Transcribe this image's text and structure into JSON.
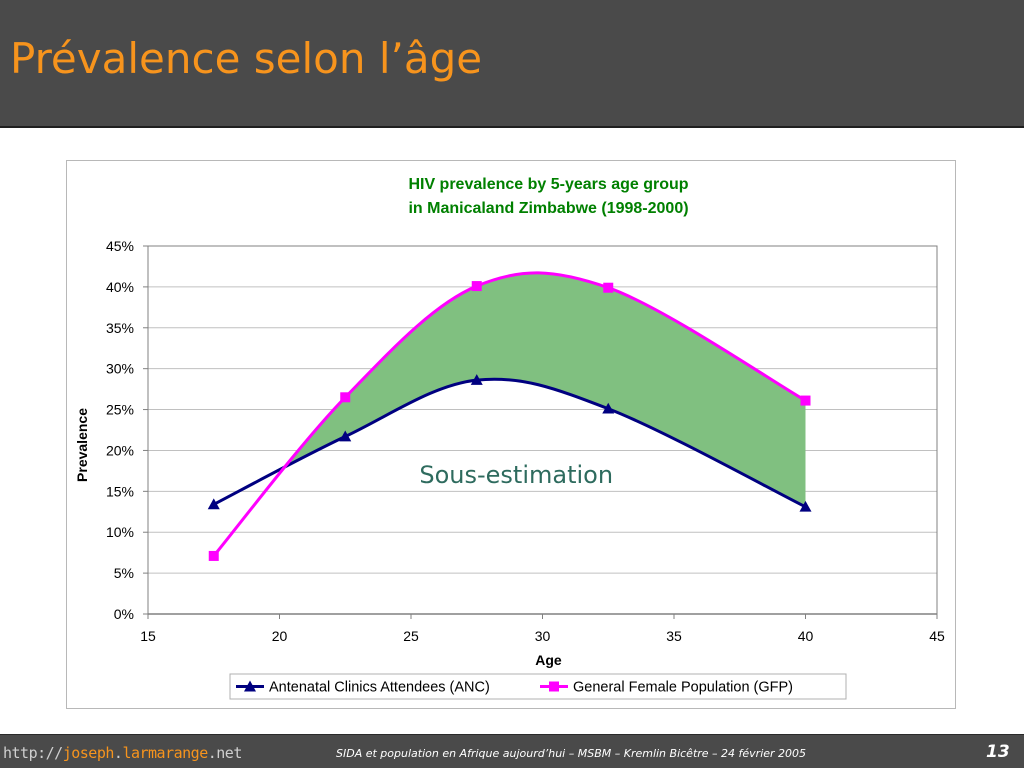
{
  "slide": {
    "title": "Prévalence selon l’âge"
  },
  "chart_data": {
    "type": "line",
    "title_lines": [
      "HIV prevalence by 5-years age group",
      "in Manicaland Zimbabwe (1998-2000)"
    ],
    "xlabel": "Age",
    "ylabel": "Prevalence",
    "xlim": [
      15,
      45
    ],
    "ylim": [
      0,
      0.45
    ],
    "x_ticks": [
      15,
      20,
      25,
      30,
      35,
      40,
      45
    ],
    "x_tick_labels": [
      "15",
      "20",
      "25",
      "30",
      "35",
      "40",
      "45"
    ],
    "y_ticks": [
      0,
      0.05,
      0.1,
      0.15,
      0.2,
      0.25,
      0.3,
      0.35,
      0.4,
      0.45
    ],
    "y_tick_labels": [
      "0%",
      "5%",
      "10%",
      "15%",
      "20%",
      "25%",
      "30%",
      "35%",
      "40%",
      "45%"
    ],
    "grid": true,
    "legend_position": "bottom",
    "series": [
      {
        "name": "Antenatal Clinics Attendees (ANC)",
        "color": "#000080",
        "marker": "triangle",
        "x": [
          17.5,
          22.5,
          27.5,
          32.5,
          40
        ],
        "y": [
          0.134,
          0.217,
          0.286,
          0.251,
          0.131
        ]
      },
      {
        "name": "General Female Population (GFP)",
        "color": "#ff00ff",
        "marker": "square",
        "x": [
          17.5,
          22.5,
          27.5,
          32.5,
          40
        ],
        "y": [
          0.071,
          0.265,
          0.401,
          0.399,
          0.261
        ]
      }
    ],
    "fill_between_color": "#80c080",
    "annotation": {
      "text": "Sous-estimation",
      "x": 29,
      "y": 0.16,
      "color": "#2e6b5e"
    },
    "title_color": "#008000"
  },
  "footer": {
    "site_prefix": "http://",
    "site_name": "joseph",
    "site_dot": ".",
    "site_name2": "larmarange",
    "site_tld": ".net",
    "caption": "SIDA et population en Afrique aujourd’hui – MSBM – Kremlin Bicêtre – 24 février 2005",
    "page": "13"
  }
}
